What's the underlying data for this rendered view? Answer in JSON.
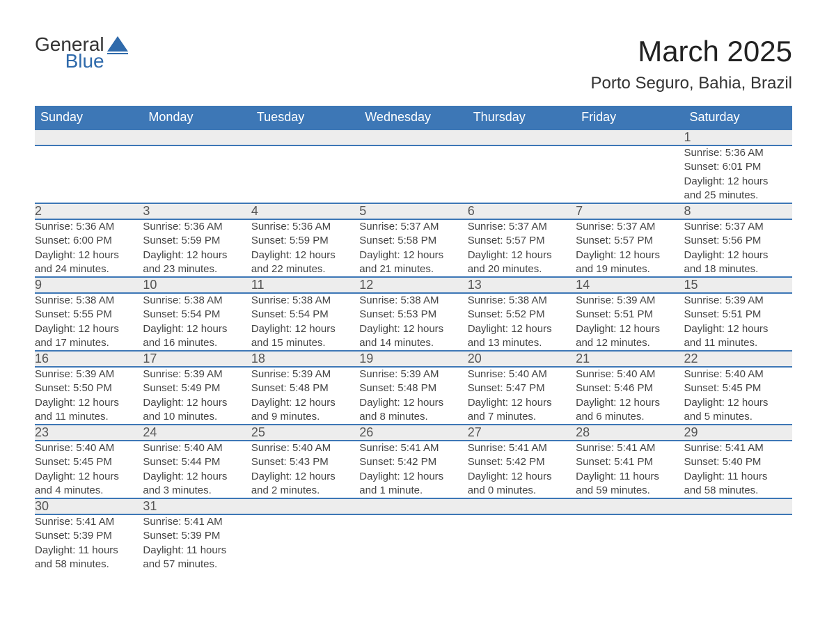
{
  "brand": {
    "word1": "General",
    "word2": "Blue",
    "accent_color": "#2f6aab"
  },
  "title": "March 2025",
  "location": "Porto Seguro, Bahia, Brazil",
  "header_bg": "#3d77b6",
  "header_fg": "#ffffff",
  "daynum_bg": "#ededed",
  "border_color": "#3d77b6",
  "text_color": "#444444",
  "fontsize_title": 42,
  "fontsize_location": 24,
  "fontsize_header": 18,
  "fontsize_daynum": 18,
  "fontsize_detail": 15,
  "weekdays": [
    "Sunday",
    "Monday",
    "Tuesday",
    "Wednesday",
    "Thursday",
    "Friday",
    "Saturday"
  ],
  "weeks": [
    [
      null,
      null,
      null,
      null,
      null,
      null,
      {
        "n": "1",
        "sr": "Sunrise: 5:36 AM",
        "ss": "Sunset: 6:01 PM",
        "dl1": "Daylight: 12 hours",
        "dl2": "and 25 minutes."
      }
    ],
    [
      {
        "n": "2",
        "sr": "Sunrise: 5:36 AM",
        "ss": "Sunset: 6:00 PM",
        "dl1": "Daylight: 12 hours",
        "dl2": "and 24 minutes."
      },
      {
        "n": "3",
        "sr": "Sunrise: 5:36 AM",
        "ss": "Sunset: 5:59 PM",
        "dl1": "Daylight: 12 hours",
        "dl2": "and 23 minutes."
      },
      {
        "n": "4",
        "sr": "Sunrise: 5:36 AM",
        "ss": "Sunset: 5:59 PM",
        "dl1": "Daylight: 12 hours",
        "dl2": "and 22 minutes."
      },
      {
        "n": "5",
        "sr": "Sunrise: 5:37 AM",
        "ss": "Sunset: 5:58 PM",
        "dl1": "Daylight: 12 hours",
        "dl2": "and 21 minutes."
      },
      {
        "n": "6",
        "sr": "Sunrise: 5:37 AM",
        "ss": "Sunset: 5:57 PM",
        "dl1": "Daylight: 12 hours",
        "dl2": "and 20 minutes."
      },
      {
        "n": "7",
        "sr": "Sunrise: 5:37 AM",
        "ss": "Sunset: 5:57 PM",
        "dl1": "Daylight: 12 hours",
        "dl2": "and 19 minutes."
      },
      {
        "n": "8",
        "sr": "Sunrise: 5:37 AM",
        "ss": "Sunset: 5:56 PM",
        "dl1": "Daylight: 12 hours",
        "dl2": "and 18 minutes."
      }
    ],
    [
      {
        "n": "9",
        "sr": "Sunrise: 5:38 AM",
        "ss": "Sunset: 5:55 PM",
        "dl1": "Daylight: 12 hours",
        "dl2": "and 17 minutes."
      },
      {
        "n": "10",
        "sr": "Sunrise: 5:38 AM",
        "ss": "Sunset: 5:54 PM",
        "dl1": "Daylight: 12 hours",
        "dl2": "and 16 minutes."
      },
      {
        "n": "11",
        "sr": "Sunrise: 5:38 AM",
        "ss": "Sunset: 5:54 PM",
        "dl1": "Daylight: 12 hours",
        "dl2": "and 15 minutes."
      },
      {
        "n": "12",
        "sr": "Sunrise: 5:38 AM",
        "ss": "Sunset: 5:53 PM",
        "dl1": "Daylight: 12 hours",
        "dl2": "and 14 minutes."
      },
      {
        "n": "13",
        "sr": "Sunrise: 5:38 AM",
        "ss": "Sunset: 5:52 PM",
        "dl1": "Daylight: 12 hours",
        "dl2": "and 13 minutes."
      },
      {
        "n": "14",
        "sr": "Sunrise: 5:39 AM",
        "ss": "Sunset: 5:51 PM",
        "dl1": "Daylight: 12 hours",
        "dl2": "and 12 minutes."
      },
      {
        "n": "15",
        "sr": "Sunrise: 5:39 AM",
        "ss": "Sunset: 5:51 PM",
        "dl1": "Daylight: 12 hours",
        "dl2": "and 11 minutes."
      }
    ],
    [
      {
        "n": "16",
        "sr": "Sunrise: 5:39 AM",
        "ss": "Sunset: 5:50 PM",
        "dl1": "Daylight: 12 hours",
        "dl2": "and 11 minutes."
      },
      {
        "n": "17",
        "sr": "Sunrise: 5:39 AM",
        "ss": "Sunset: 5:49 PM",
        "dl1": "Daylight: 12 hours",
        "dl2": "and 10 minutes."
      },
      {
        "n": "18",
        "sr": "Sunrise: 5:39 AM",
        "ss": "Sunset: 5:48 PM",
        "dl1": "Daylight: 12 hours",
        "dl2": "and 9 minutes."
      },
      {
        "n": "19",
        "sr": "Sunrise: 5:39 AM",
        "ss": "Sunset: 5:48 PM",
        "dl1": "Daylight: 12 hours",
        "dl2": "and 8 minutes."
      },
      {
        "n": "20",
        "sr": "Sunrise: 5:40 AM",
        "ss": "Sunset: 5:47 PM",
        "dl1": "Daylight: 12 hours",
        "dl2": "and 7 minutes."
      },
      {
        "n": "21",
        "sr": "Sunrise: 5:40 AM",
        "ss": "Sunset: 5:46 PM",
        "dl1": "Daylight: 12 hours",
        "dl2": "and 6 minutes."
      },
      {
        "n": "22",
        "sr": "Sunrise: 5:40 AM",
        "ss": "Sunset: 5:45 PM",
        "dl1": "Daylight: 12 hours",
        "dl2": "and 5 minutes."
      }
    ],
    [
      {
        "n": "23",
        "sr": "Sunrise: 5:40 AM",
        "ss": "Sunset: 5:45 PM",
        "dl1": "Daylight: 12 hours",
        "dl2": "and 4 minutes."
      },
      {
        "n": "24",
        "sr": "Sunrise: 5:40 AM",
        "ss": "Sunset: 5:44 PM",
        "dl1": "Daylight: 12 hours",
        "dl2": "and 3 minutes."
      },
      {
        "n": "25",
        "sr": "Sunrise: 5:40 AM",
        "ss": "Sunset: 5:43 PM",
        "dl1": "Daylight: 12 hours",
        "dl2": "and 2 minutes."
      },
      {
        "n": "26",
        "sr": "Sunrise: 5:41 AM",
        "ss": "Sunset: 5:42 PM",
        "dl1": "Daylight: 12 hours",
        "dl2": "and 1 minute."
      },
      {
        "n": "27",
        "sr": "Sunrise: 5:41 AM",
        "ss": "Sunset: 5:42 PM",
        "dl1": "Daylight: 12 hours",
        "dl2": "and 0 minutes."
      },
      {
        "n": "28",
        "sr": "Sunrise: 5:41 AM",
        "ss": "Sunset: 5:41 PM",
        "dl1": "Daylight: 11 hours",
        "dl2": "and 59 minutes."
      },
      {
        "n": "29",
        "sr": "Sunrise: 5:41 AM",
        "ss": "Sunset: 5:40 PM",
        "dl1": "Daylight: 11 hours",
        "dl2": "and 58 minutes."
      }
    ],
    [
      {
        "n": "30",
        "sr": "Sunrise: 5:41 AM",
        "ss": "Sunset: 5:39 PM",
        "dl1": "Daylight: 11 hours",
        "dl2": "and 58 minutes."
      },
      {
        "n": "31",
        "sr": "Sunrise: 5:41 AM",
        "ss": "Sunset: 5:39 PM",
        "dl1": "Daylight: 11 hours",
        "dl2": "and 57 minutes."
      },
      null,
      null,
      null,
      null,
      null
    ]
  ]
}
